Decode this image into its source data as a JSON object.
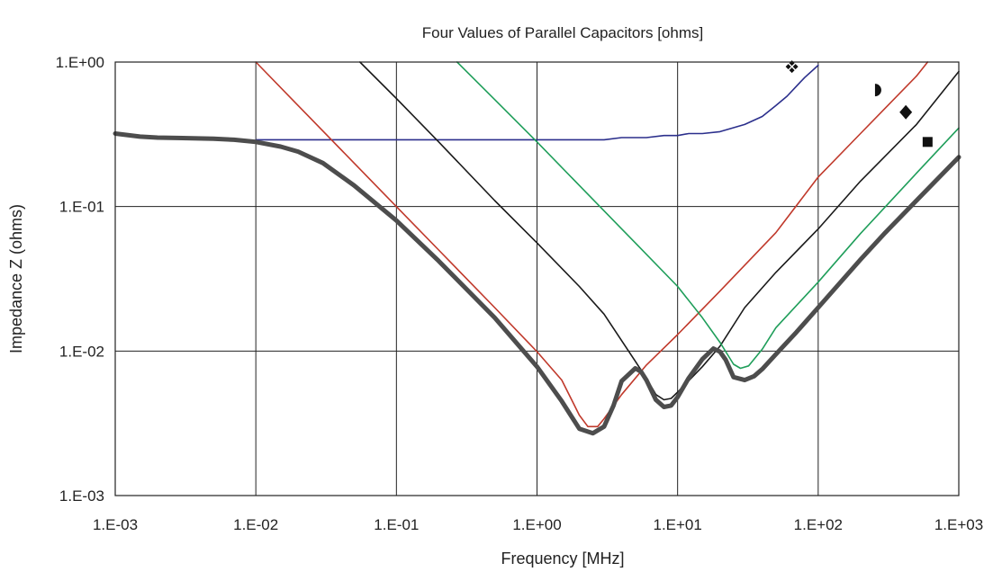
{
  "chart_data": {
    "type": "line",
    "title": "Four Values of Parallel Capacitors [ohms]",
    "xlabel": "Frequency [MHz]",
    "ylabel": "Impedance Z (ohms)",
    "x_scale": "log",
    "y_scale": "log",
    "xlim": [
      0.001,
      1000
    ],
    "ylim": [
      0.001,
      1
    ],
    "x_ticks": [
      "1.E-03",
      "1.E-02",
      "1.E-01",
      "1.E+00",
      "1.E+01",
      "1.E+02",
      "1.E+03"
    ],
    "y_ticks": [
      "1.E-03",
      "1.E-02",
      "1.E-01",
      "1.E+00"
    ],
    "grid": true,
    "legend": "none",
    "series": [
      {
        "color": "#2b2f8c",
        "marker": "four-diamonds-icon",
        "points": [
          [
            0.01,
            0.29
          ],
          [
            0.1,
            0.29
          ],
          [
            1,
            0.29
          ],
          [
            3,
            0.29
          ],
          [
            4,
            0.3
          ],
          [
            6,
            0.3
          ],
          [
            8,
            0.31
          ],
          [
            10,
            0.31
          ],
          [
            12,
            0.32
          ],
          [
            15,
            0.32
          ],
          [
            20,
            0.33
          ],
          [
            30,
            0.37
          ],
          [
            40,
            0.42
          ],
          [
            50,
            0.5
          ],
          [
            60,
            0.58
          ],
          [
            70,
            0.68
          ],
          [
            80,
            0.78
          ],
          [
            100,
            0.95
          ]
        ]
      },
      {
        "color": "#c0392b",
        "marker": "half-circle-icon",
        "points": [
          [
            0.01,
            1.0
          ],
          [
            0.02,
            0.5
          ],
          [
            0.05,
            0.2
          ],
          [
            0.1,
            0.1
          ],
          [
            0.2,
            0.05
          ],
          [
            0.5,
            0.02
          ],
          [
            1,
            0.0099
          ],
          [
            1.5,
            0.0063
          ],
          [
            2,
            0.0036
          ],
          [
            2.3,
            0.003
          ],
          [
            2.7,
            0.003
          ],
          [
            3,
            0.0034
          ],
          [
            4,
            0.005
          ],
          [
            6,
            0.008
          ],
          [
            10,
            0.013
          ],
          [
            20,
            0.026
          ],
          [
            50,
            0.066
          ],
          [
            100,
            0.16
          ],
          [
            200,
            0.32
          ],
          [
            500,
            0.8
          ],
          [
            600,
            1.0
          ]
        ]
      },
      {
        "color": "#1a1a1a",
        "marker": "diamond-icon",
        "points": [
          [
            0.055,
            1.0
          ],
          [
            0.1,
            0.56
          ],
          [
            0.2,
            0.28
          ],
          [
            0.5,
            0.11
          ],
          [
            1,
            0.056
          ],
          [
            2,
            0.028
          ],
          [
            3,
            0.018
          ],
          [
            5,
            0.0085
          ],
          [
            6,
            0.0065
          ],
          [
            7,
            0.005
          ],
          [
            8,
            0.0046
          ],
          [
            9,
            0.0047
          ],
          [
            10,
            0.0052
          ],
          [
            15,
            0.0078
          ],
          [
            20,
            0.0108
          ],
          [
            30,
            0.02
          ],
          [
            50,
            0.035
          ],
          [
            100,
            0.07
          ],
          [
            200,
            0.15
          ],
          [
            500,
            0.37
          ],
          [
            1000,
            0.86
          ]
        ]
      },
      {
        "color": "#1f9e5a",
        "marker": "square-icon",
        "points": [
          [
            0.27,
            1.0
          ],
          [
            0.5,
            0.55
          ],
          [
            1,
            0.28
          ],
          [
            2,
            0.14
          ],
          [
            5,
            0.056
          ],
          [
            10,
            0.028
          ],
          [
            15,
            0.017
          ],
          [
            20,
            0.0115
          ],
          [
            25,
            0.0081
          ],
          [
            28,
            0.0076
          ],
          [
            32,
            0.0079
          ],
          [
            40,
            0.0103
          ],
          [
            50,
            0.0145
          ],
          [
            100,
            0.03
          ],
          [
            200,
            0.065
          ],
          [
            500,
            0.17
          ],
          [
            1000,
            0.35
          ]
        ]
      },
      {
        "color": "#4d4d4d",
        "marker": "",
        "points": [
          [
            0.001,
            0.32
          ],
          [
            0.0015,
            0.305
          ],
          [
            0.002,
            0.3
          ],
          [
            0.003,
            0.298
          ],
          [
            0.005,
            0.295
          ],
          [
            0.007,
            0.29
          ],
          [
            0.01,
            0.28
          ],
          [
            0.015,
            0.26
          ],
          [
            0.02,
            0.24
          ],
          [
            0.03,
            0.2
          ],
          [
            0.05,
            0.14
          ],
          [
            0.1,
            0.08
          ],
          [
            0.2,
            0.042
          ],
          [
            0.5,
            0.017
          ],
          [
            1,
            0.0078
          ],
          [
            1.5,
            0.0045
          ],
          [
            2,
            0.0029
          ],
          [
            2.5,
            0.0027
          ],
          [
            3,
            0.003
          ],
          [
            3.5,
            0.0042
          ],
          [
            4,
            0.0062
          ],
          [
            5,
            0.0076
          ],
          [
            5.5,
            0.0072
          ],
          [
            6,
            0.0063
          ],
          [
            7,
            0.0046
          ],
          [
            8,
            0.0041
          ],
          [
            9,
            0.0042
          ],
          [
            10,
            0.0048
          ],
          [
            12,
            0.0065
          ],
          [
            15,
            0.0088
          ],
          [
            18,
            0.0104
          ],
          [
            20,
            0.0099
          ],
          [
            22,
            0.0087
          ],
          [
            25,
            0.0066
          ],
          [
            30,
            0.0063
          ],
          [
            35,
            0.0067
          ],
          [
            40,
            0.0075
          ],
          [
            50,
            0.0095
          ],
          [
            70,
            0.0135
          ],
          [
            100,
            0.02
          ],
          [
            200,
            0.043
          ],
          [
            300,
            0.066
          ],
          [
            500,
            0.11
          ],
          [
            1000,
            0.22
          ]
        ]
      }
    ],
    "markers": [
      {
        "icon": "four-diamonds-icon",
        "x": 65,
        "y": 0.93
      },
      {
        "icon": "half-circle-icon",
        "x": 265,
        "y": 0.64
      },
      {
        "icon": "diamond-icon",
        "x": 420,
        "y": 0.45
      },
      {
        "icon": "square-icon",
        "x": 600,
        "y": 0.28
      }
    ]
  }
}
